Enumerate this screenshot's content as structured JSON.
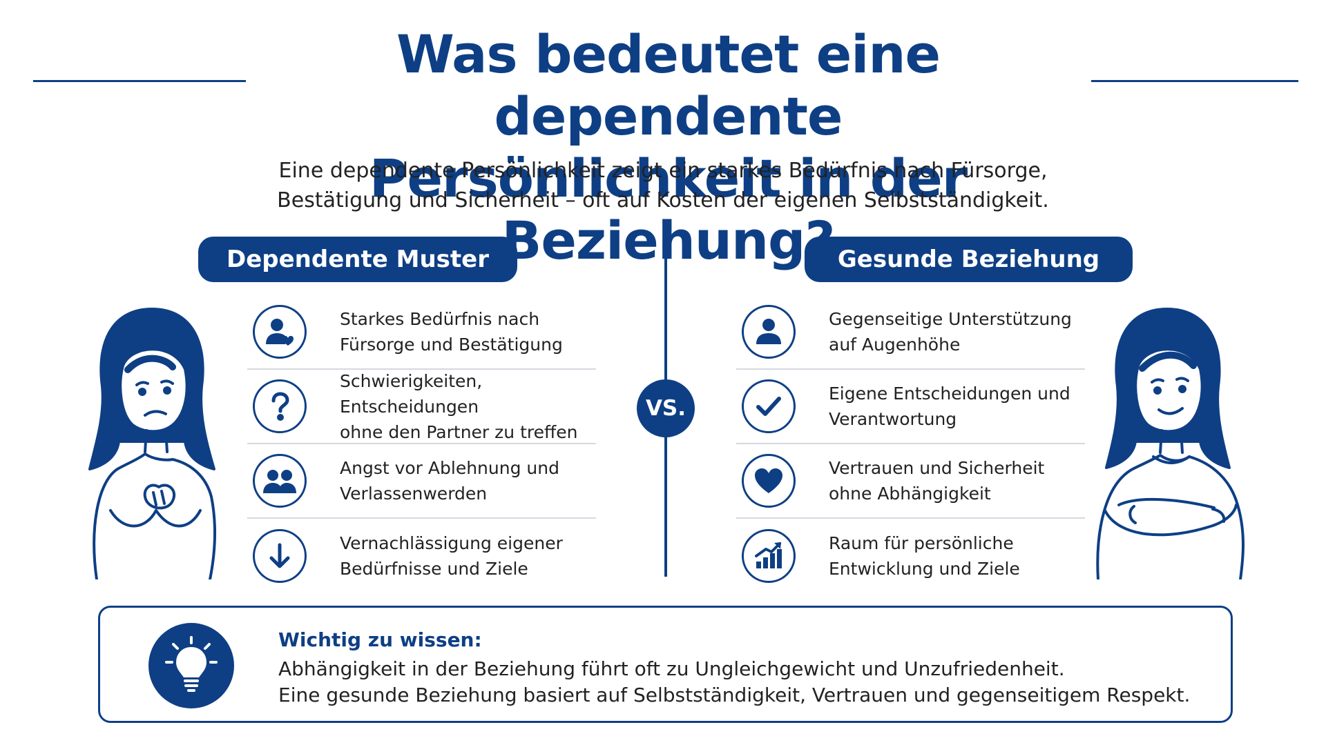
{
  "title": {
    "line1": "Was bedeutet eine dependente",
    "line2": "Persönlichkeit in der Beziehung?"
  },
  "subtitle": {
    "line1": "Eine dependente Persönlichkeit zeigt ein starkes Bedürfnis nach Fürsorge,",
    "line2": "Bestätigung und Sicherheit – oft auf Kosten der eigenen Selbstständigkeit."
  },
  "left": {
    "heading": "Dependente Muster",
    "items": [
      {
        "icon": "person-heart-icon",
        "text": "Starkes Bedürfnis nach\nFürsorge und Bestätigung"
      },
      {
        "icon": "question-icon",
        "text": "Schwierigkeiten, Entscheidungen\nohne den Partner zu treffen"
      },
      {
        "icon": "people-icon",
        "text": "Angst vor Ablehnung und\nVerlassenwerden"
      },
      {
        "icon": "arrow-down-icon",
        "text": "Vernachlässigung eigener\nBedürfnisse und Ziele"
      }
    ]
  },
  "vs_label": "VS.",
  "right": {
    "heading": "Gesunde Beziehung",
    "items": [
      {
        "icon": "person-icon",
        "text": "Gegenseitige Unterstützung\nauf Augenhöhe"
      },
      {
        "icon": "checkmark-icon",
        "text": "Eigene Entscheidungen und\nVerantwortung"
      },
      {
        "icon": "heart-icon",
        "text": "Vertrauen und Sicherheit\nohne Abhängigkeit"
      },
      {
        "icon": "growth-chart-icon",
        "text": "Raum für persönliche\nEntwicklung und Ziele"
      }
    ]
  },
  "info": {
    "icon": "lightbulb-icon",
    "heading": "Wichtig zu wissen:",
    "line1": "Abhängigkeit in der Beziehung führt oft zu Ungleichgewicht und Unzufriedenheit.",
    "line2": "Eine gesunde Beziehung basiert auf Selbstständigkeit, Vertrauen und gegenseitigem Respekt."
  },
  "colors": {
    "primary": "#0e3f85",
    "text": "#222222",
    "divider": "#d4d8de"
  }
}
